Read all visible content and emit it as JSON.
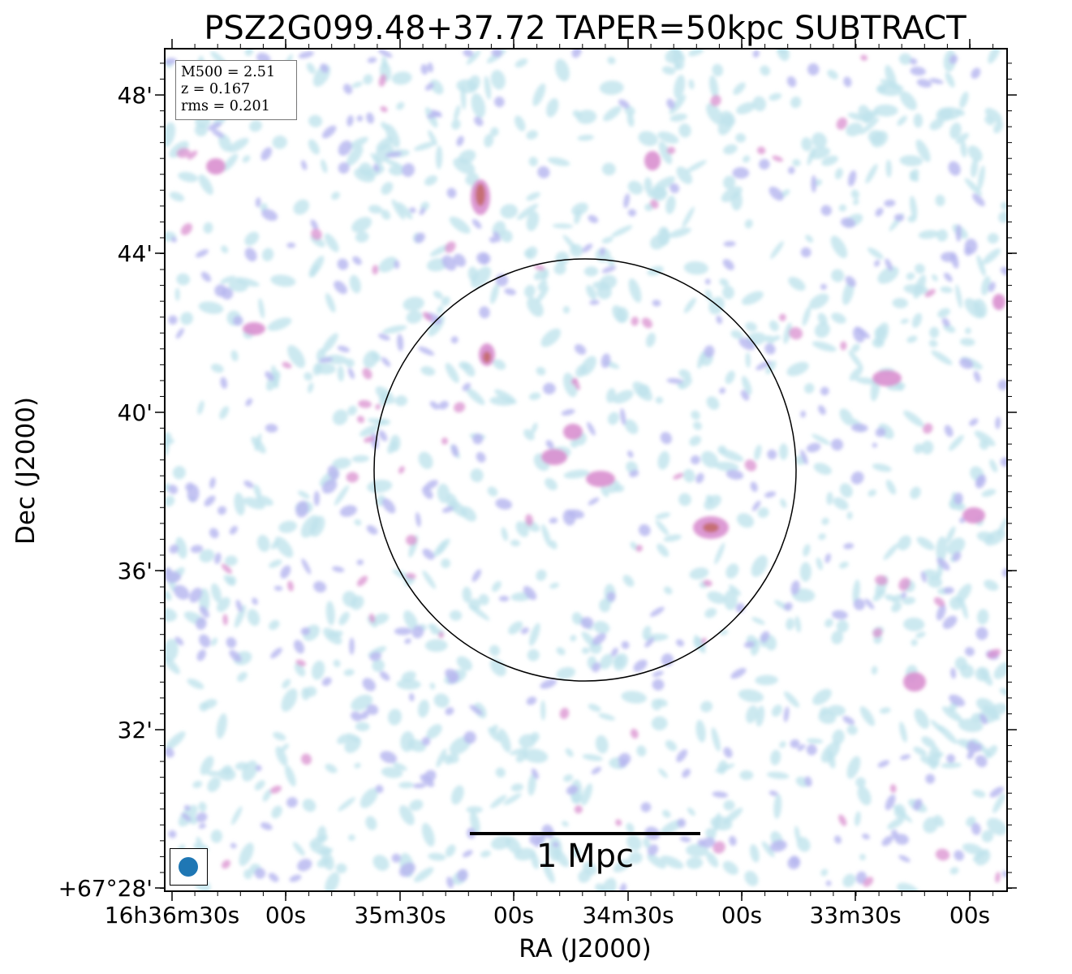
{
  "title": "PSZ2G099.48+37.72 TAPER=50kpc SUBTRACT",
  "info": {
    "m500": "M500 = 2.51",
    "z": "z = 0.167",
    "rms": "rms = 0.201"
  },
  "xlabel": "RA (J2000)",
  "ylabel": "Dec (J2000)",
  "xticks": [
    "16h36m30s",
    "00s",
    "35m30s",
    "00s",
    "34m30s",
    "00s",
    "33m30s",
    "00s"
  ],
  "yticks": [
    "48'",
    "44'",
    "40'",
    "36'",
    "32'",
    "+67°28'"
  ],
  "scalebar_label": "1 Mpc",
  "colors": {
    "beam": "#1f77b4",
    "low": "#bfe3ec",
    "mid": "#b8b8f0",
    "high": "#d98fcf",
    "peak": "#c46a6a"
  }
}
